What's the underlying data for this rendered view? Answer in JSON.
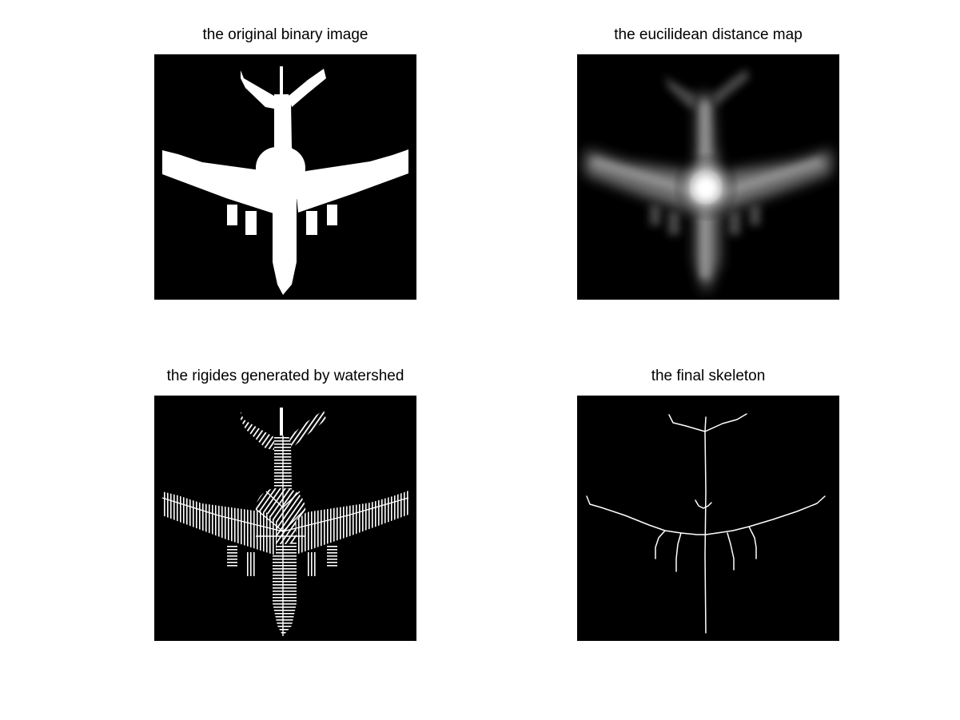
{
  "figure": {
    "panels": [
      {
        "title": "the original binary image"
      },
      {
        "title": "the eucilidean distance map"
      },
      {
        "title": "the rigides generated by watershed"
      },
      {
        "title": "the final skeleton"
      }
    ]
  },
  "colors": {
    "background": "#ffffff",
    "image_background": "#000000",
    "foreground": "#ffffff"
  }
}
